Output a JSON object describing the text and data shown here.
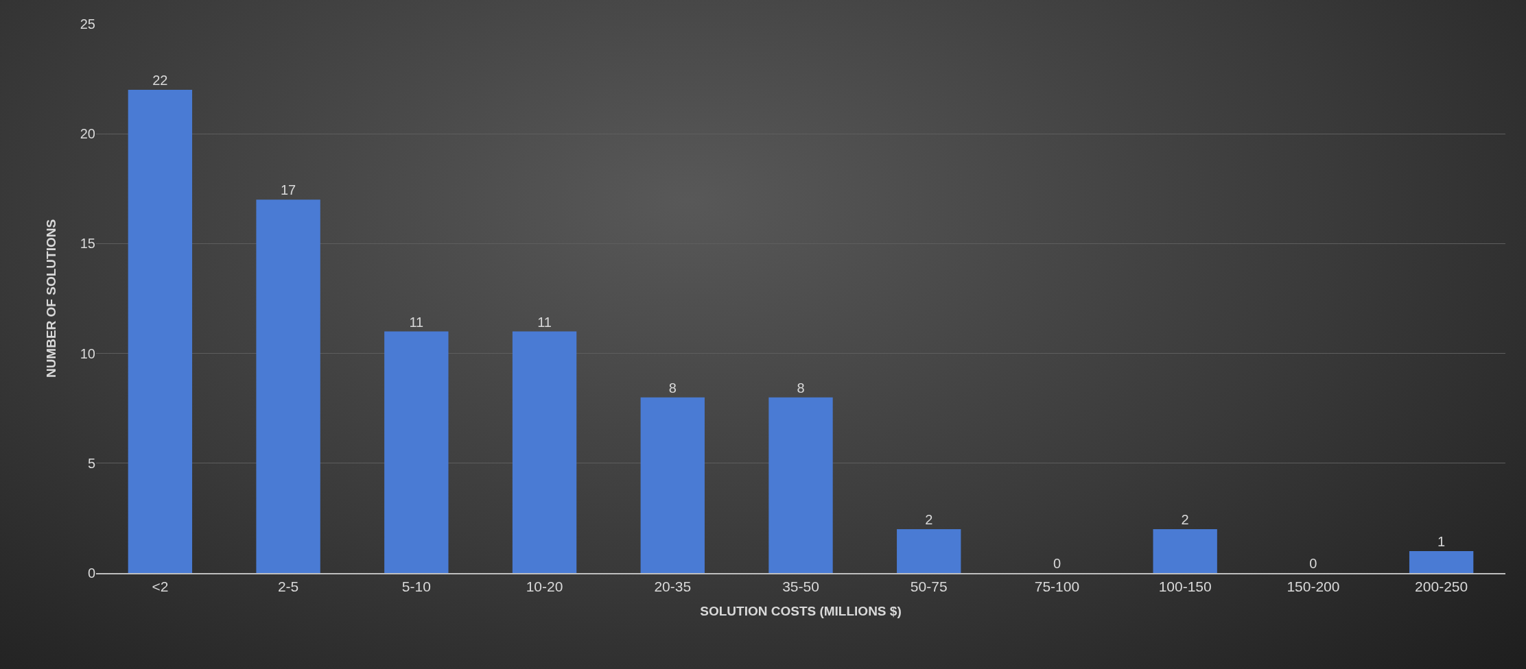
{
  "chart_data": {
    "type": "bar",
    "xlabel": "SOLUTION COSTS (MILLIONS $)",
    "ylabel": "NUMBER OF SOLUTIONS",
    "categories": [
      "<2",
      "2-5",
      "5-10",
      "10-20",
      "20-35",
      "35-50",
      "50-75",
      "75-100",
      "100-150",
      "150-200",
      "200-250"
    ],
    "values": [
      22,
      17,
      11,
      11,
      8,
      8,
      2,
      0,
      2,
      0,
      1
    ],
    "color": "#4a7bd4",
    "ylim": [
      0,
      25
    ],
    "yticks": [
      0,
      5,
      10,
      15,
      20,
      25
    ],
    "grid": "y",
    "data_labels": true,
    "legend": false
  }
}
